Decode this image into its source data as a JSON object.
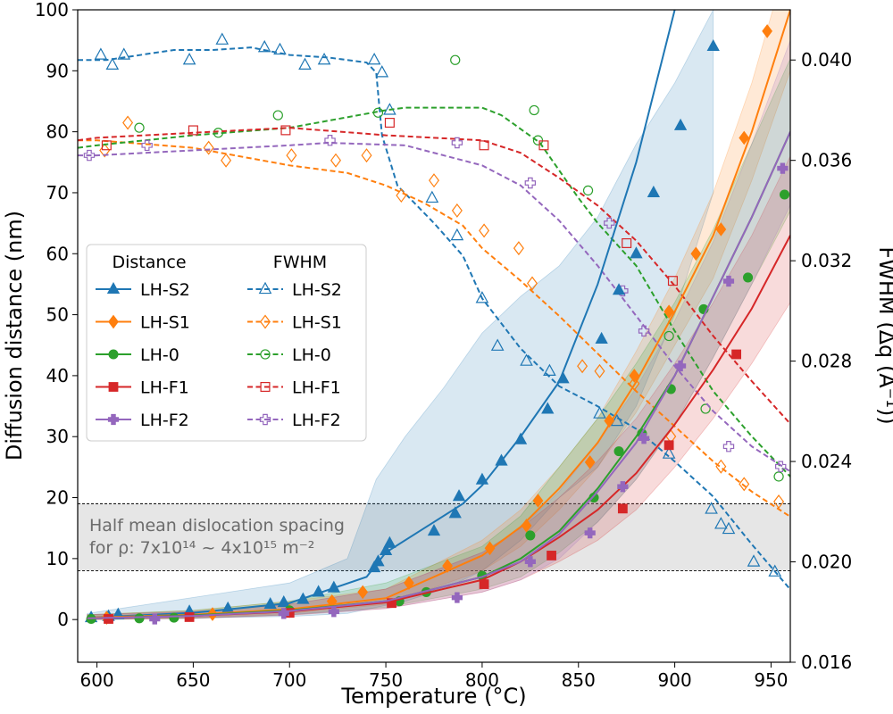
{
  "chart_data": {
    "type": "line",
    "xlabel": "Temperature (°C)",
    "ylabel_left": "Diffusion distance (nm)",
    "ylabel_right": "FWHM (Δq (Å⁻¹))",
    "xlim": [
      590,
      960
    ],
    "ylim_left": [
      -7,
      100
    ],
    "ylim_right": [
      0.016,
      0.042
    ],
    "x_ticks": [
      600,
      650,
      700,
      750,
      800,
      850,
      900,
      950
    ],
    "y_ticks_left": [
      0,
      10,
      20,
      30,
      40,
      50,
      60,
      70,
      80,
      90,
      100
    ],
    "y_ticks_right": [
      0.016,
      0.02,
      0.024,
      0.028,
      0.032,
      0.036,
      0.04
    ],
    "x_tick_labels": [
      "600",
      "650",
      "700",
      "750",
      "800",
      "850",
      "900",
      "950"
    ],
    "y_tick_labels_left": [
      "0",
      "10",
      "20",
      "30",
      "40",
      "50",
      "60",
      "70",
      "80",
      "90",
      "100"
    ],
    "y_tick_labels_right": [
      "0.016",
      "0.020",
      "0.024",
      "0.028",
      "0.032",
      "0.036",
      "0.040"
    ],
    "band": {
      "y_low": 8,
      "y_high": 19,
      "text_line1": "Half mean dislocation spacing",
      "text_line2": "for ρ: 7x10¹⁴ ~ 4x10¹⁵ m⁻²"
    },
    "legend": {
      "distance_title": "Distance",
      "fwhm_title": "FWHM",
      "location": "center-left"
    },
    "series": [
      {
        "name": "LH-S2",
        "color": "#1f77b4",
        "marker": "triangle",
        "distance_line": {
          "x": [
            595,
            650,
            700,
            740,
            745,
            750,
            770,
            790,
            800,
            820,
            840,
            860,
            880,
            900,
            920
          ],
          "y": [
            0.3,
            1.1,
            2.7,
            7,
            9,
            11,
            15,
            19,
            22,
            30,
            39,
            55,
            75,
            100,
            125
          ]
        },
        "distance_points": {
          "x": [
            597,
            606,
            611,
            648,
            668,
            690,
            697,
            707,
            715,
            723,
            744,
            746,
            750,
            752,
            775,
            786,
            788,
            800,
            810,
            820,
            834,
            842,
            862,
            871,
            880,
            889,
            903,
            920
          ],
          "y": [
            0.3,
            0.5,
            0.8,
            1.3,
            1.8,
            2.5,
            2.8,
            3.3,
            4.5,
            5.2,
            8.5,
            9.5,
            11.3,
            12.5,
            14.5,
            17.4,
            20.2,
            22.9,
            26,
            29.5,
            34.5,
            39.5,
            46,
            54,
            60,
            70,
            81,
            94
          ]
        },
        "distance_band": {
          "x": [
            595,
            700,
            730,
            745,
            760,
            780,
            800,
            820,
            840,
            860,
            880,
            900,
            920
          ],
          "lower": [
            0,
            0.5,
            1,
            2,
            3,
            5,
            8,
            13,
            20,
            25,
            35,
            50,
            70
          ],
          "upper": [
            1,
            6,
            10,
            23,
            30,
            38,
            47,
            53,
            58,
            66,
            78,
            88,
            100
          ]
        },
        "fwhm_line": {
          "x": [
            590,
            605,
            640,
            660,
            680,
            700,
            720,
            740,
            745,
            748,
            752,
            756,
            775,
            790,
            800,
            820,
            840,
            860,
            880,
            900,
            920,
            940,
            960
          ],
          "y": [
            0.04,
            0.04,
            0.0404,
            0.0404,
            0.0405,
            0.0402,
            0.0401,
            0.0399,
            0.0395,
            0.037,
            0.036,
            0.035,
            0.0335,
            0.0322,
            0.0305,
            0.0285,
            0.027,
            0.0262,
            0.0253,
            0.024,
            0.0226,
            0.0207,
            0.0189
          ]
        },
        "fwhm_points": {
          "x": [
            602,
            608,
            614,
            648,
            665,
            687,
            695,
            708,
            718,
            744,
            748,
            752,
            774,
            787,
            800,
            808,
            823,
            835,
            861,
            870,
            897,
            919,
            924,
            928,
            941,
            952
          ],
          "y": [
            0.0402,
            0.0398,
            0.0402,
            0.04,
            0.0408,
            0.0405,
            0.0404,
            0.0398,
            0.04,
            0.04,
            0.0395,
            0.038,
            0.0345,
            0.033,
            0.0305,
            0.0286,
            0.028,
            0.0276,
            0.0259,
            0.0256,
            0.0243,
            0.0221,
            0.0215,
            0.0213,
            0.02,
            0.0196
          ]
        }
      },
      {
        "name": "LH-S1",
        "color": "#ff7f0e",
        "marker": "diamond",
        "distance_line": {
          "x": [
            595,
            650,
            700,
            750,
            800,
            820,
            840,
            860,
            880,
            900,
            920,
            940,
            960
          ],
          "y": [
            0.3,
            0.8,
            1.7,
            3.5,
            10.5,
            15.2,
            21.5,
            29,
            39,
            50.5,
            63,
            80,
            100
          ]
        },
        "distance_points": {
          "x": [
            605,
            660,
            700,
            722,
            738,
            762,
            782,
            804,
            823,
            829,
            856,
            866,
            879,
            897,
            911,
            924,
            936,
            948
          ],
          "y": [
            0.3,
            0.9,
            1.4,
            3,
            4.5,
            6,
            8.8,
            11.7,
            15.4,
            19.5,
            25.8,
            32.6,
            40,
            50.5,
            60,
            64,
            79,
            96.5
          ]
        },
        "distance_band": {
          "x": [
            595,
            650,
            700,
            750,
            800,
            820,
            840,
            860,
            880,
            900,
            920,
            940,
            960
          ],
          "lower": [
            0,
            0.3,
            1,
            2.5,
            8,
            12,
            18,
            25,
            34,
            45,
            56,
            72,
            90
          ],
          "upper": [
            0.8,
            1.5,
            3,
            5,
            13,
            18,
            25,
            33,
            44,
            56,
            70,
            88,
            110
          ]
        },
        "fwhm_line": {
          "x": [
            590,
            600,
            650,
            700,
            730,
            750,
            770,
            790,
            800,
            820,
            840,
            860,
            880,
            900,
            920,
            940,
            960
          ],
          "y": [
            0.0368,
            0.0368,
            0.0365,
            0.0358,
            0.0355,
            0.035,
            0.0343,
            0.0334,
            0.0325,
            0.0312,
            0.0298,
            0.0283,
            0.0268,
            0.0254,
            0.024,
            0.0228,
            0.0218
          ]
        },
        "fwhm_points": {
          "x": [
            604,
            616,
            658,
            667,
            701,
            724,
            740,
            758,
            775,
            787,
            801,
            819,
            826,
            852,
            861,
            879,
            898,
            924,
            936,
            954
          ],
          "y": [
            0.0364,
            0.0375,
            0.0365,
            0.036,
            0.0362,
            0.036,
            0.0362,
            0.0346,
            0.0352,
            0.034,
            0.0332,
            0.0325,
            0.0311,
            0.0278,
            0.0276,
            0.0271,
            0.025,
            0.0238,
            0.0231,
            0.0224
          ]
        }
      },
      {
        "name": "LH-0",
        "color": "#2ca02c",
        "marker": "circle",
        "distance_line": {
          "x": [
            595,
            650,
            700,
            750,
            800,
            820,
            840,
            860,
            880,
            900,
            920,
            940,
            960
          ],
          "y": [
            0.2,
            0.7,
            1.5,
            3,
            7,
            10,
            14.5,
            21.5,
            30,
            40,
            53,
            66,
            80
          ]
        },
        "distance_points": {
          "x": [
            597,
            622,
            640,
            700,
            757,
            771,
            800,
            825,
            858,
            871,
            883,
            898,
            915,
            938,
            957
          ],
          "y": [
            0.1,
            0.2,
            0.3,
            1.5,
            3,
            4.5,
            7.2,
            13.8,
            20,
            27.6,
            30.5,
            37.8,
            50.9,
            56.1,
            69.7
          ]
        },
        "distance_band": {
          "x": [
            595,
            650,
            700,
            750,
            800,
            820,
            840,
            860,
            880,
            900,
            920,
            940,
            960
          ],
          "lower": [
            0,
            0.2,
            0.8,
            2,
            5,
            7,
            11,
            16,
            23,
            32,
            43,
            55,
            67
          ],
          "upper": [
            0.8,
            1.5,
            3,
            6,
            12,
            17,
            25,
            33,
            42,
            52,
            64,
            78,
            92
          ]
        },
        "fwhm_line": {
          "x": [
            590,
            600,
            650,
            700,
            750,
            760,
            800,
            810,
            830,
            850,
            860,
            880,
            900,
            920,
            940,
            960
          ],
          "y": [
            0.0365,
            0.0366,
            0.037,
            0.0373,
            0.038,
            0.0381,
            0.0381,
            0.0378,
            0.0367,
            0.0345,
            0.0335,
            0.0318,
            0.0292,
            0.0268,
            0.025,
            0.0234
          ]
        },
        "fwhm_points": {
          "x": [
            622,
            663,
            694,
            746,
            786,
            827,
            829,
            855,
            897,
            916,
            954
          ],
          "y": [
            0.0373,
            0.0371,
            0.0378,
            0.0379,
            0.04,
            0.038,
            0.0368,
            0.0348,
            0.029,
            0.0261,
            0.0234
          ]
        }
      },
      {
        "name": "LH-F1",
        "color": "#d62728",
        "marker": "square",
        "distance_line": {
          "x": [
            595,
            650,
            700,
            750,
            800,
            820,
            840,
            860,
            880,
            900,
            920,
            940,
            960
          ],
          "y": [
            0.2,
            0.6,
            1.3,
            2.8,
            6.5,
            9.5,
            13.5,
            18,
            24,
            32,
            41,
            51,
            63
          ]
        },
        "distance_points": {
          "x": [
            606,
            648,
            700,
            753,
            801,
            836,
            873,
            897,
            932
          ],
          "y": [
            0.1,
            0.4,
            1.1,
            2.7,
            5.8,
            10.5,
            18.2,
            28.6,
            43.5
          ]
        },
        "distance_band": {
          "x": [
            595,
            650,
            700,
            750,
            800,
            820,
            840,
            860,
            880,
            900,
            920,
            940,
            960
          ],
          "lower": [
            0,
            0.2,
            0.7,
            1.8,
            4.5,
            6.5,
            9.5,
            13,
            18,
            25,
            33,
            42,
            52
          ],
          "upper": [
            0.8,
            1.3,
            2.5,
            5,
            11,
            15,
            20,
            26,
            33,
            42,
            52,
            63,
            76
          ]
        },
        "fwhm_line": {
          "x": [
            590,
            600,
            650,
            700,
            750,
            800,
            820,
            840,
            860,
            880,
            900,
            920,
            940,
            960
          ],
          "y": [
            0.0368,
            0.0369,
            0.0371,
            0.0373,
            0.037,
            0.0368,
            0.0363,
            0.0353,
            0.0342,
            0.0328,
            0.031,
            0.029,
            0.0272,
            0.0255
          ]
        },
        "fwhm_points": {
          "x": [
            605,
            650,
            698,
            752,
            801,
            832,
            875,
            899
          ],
          "y": [
            0.0366,
            0.0372,
            0.0372,
            0.0375,
            0.0366,
            0.0366,
            0.0327,
            0.0312
          ]
        }
      },
      {
        "name": "LH-F2",
        "color": "#9467bd",
        "marker": "plus",
        "distance_line": {
          "x": [
            595,
            650,
            700,
            750,
            800,
            820,
            840,
            860,
            880,
            900,
            920,
            940,
            960
          ],
          "y": [
            0.2,
            0.6,
            1.4,
            3,
            7,
            9.5,
            14,
            21,
            29,
            40,
            53,
            66,
            80
          ]
        },
        "distance_points": {
          "x": [
            630,
            697,
            723,
            787,
            825,
            856,
            873,
            884,
            903,
            928,
            956
          ],
          "y": [
            0.1,
            1,
            1.3,
            3.6,
            9.5,
            14.2,
            21.8,
            29.7,
            41.6,
            55.5,
            74
          ]
        },
        "distance_band": {
          "x": [
            595,
            650,
            700,
            750,
            800,
            820,
            840,
            860,
            880,
            900,
            920,
            940,
            960
          ],
          "lower": [
            0,
            0.2,
            0.8,
            1.8,
            4.5,
            6.5,
            10,
            16,
            23,
            32,
            43,
            55,
            68
          ],
          "upper": [
            0.8,
            1.3,
            2.5,
            5,
            11,
            15,
            21,
            29,
            38,
            49,
            62,
            78,
            95
          ]
        },
        "fwhm_line": {
          "x": [
            590,
            600,
            650,
            700,
            720,
            760,
            780,
            800,
            820,
            840,
            860,
            880,
            900,
            920,
            940,
            960
          ],
          "y": [
            0.0362,
            0.0362,
            0.0364,
            0.0366,
            0.0367,
            0.0366,
            0.0362,
            0.0358,
            0.035,
            0.0336,
            0.0318,
            0.0298,
            0.0278,
            0.026,
            0.0246,
            0.0236
          ]
        },
        "fwhm_points": {
          "x": [
            596,
            626,
            721,
            787,
            825,
            866,
            873,
            884,
            928,
            955
          ],
          "y": [
            0.0362,
            0.0366,
            0.0368,
            0.0367,
            0.0351,
            0.0335,
            0.0308,
            0.0292,
            0.0246,
            0.0238
          ]
        }
      }
    ]
  }
}
